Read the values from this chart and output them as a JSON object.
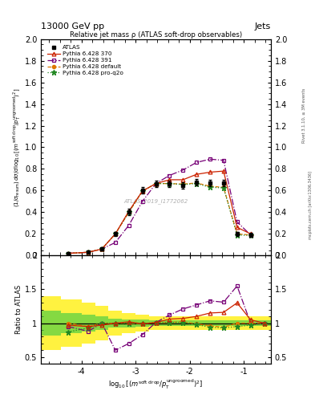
{
  "title_top": "13000 GeV pp",
  "title_right": "Jets",
  "main_title": "Relative jet mass ρ (ATLAS soft-drop observables)",
  "watermark": "ATLAS_2019_I1772062",
  "right_label": "Rivet 3.1.10, ≥ 3M events",
  "arxiv_label": "mcplots.cern.ch [arXiv:1306.3436]",
  "ylabel_ratio": "Ratio to ATLAS",
  "xlim": [
    -4.75,
    -0.5
  ],
  "ylim_main": [
    0.0,
    2.0
  ],
  "ylim_ratio": [
    0.4,
    2.0
  ],
  "x_ticks": [
    -4,
    -3,
    -2,
    -1
  ],
  "x_values": [
    -4.25,
    -3.875,
    -3.625,
    -3.375,
    -3.125,
    -2.875,
    -2.625,
    -2.375,
    -2.125,
    -1.875,
    -1.625,
    -1.375,
    -1.125,
    -0.875,
    -0.625
  ],
  "atlas_y": [
    0.02,
    0.03,
    0.06,
    0.2,
    0.4,
    0.6,
    0.66,
    0.66,
    0.65,
    0.68,
    0.67,
    0.67,
    0.2,
    0.19,
    0.0
  ],
  "atlas_yerr": [
    0.005,
    0.005,
    0.01,
    0.02,
    0.03,
    0.03,
    0.03,
    0.03,
    0.03,
    0.03,
    0.03,
    0.03,
    0.02,
    0.02,
    0.005
  ],
  "p370_y": [
    0.02,
    0.03,
    0.06,
    0.2,
    0.41,
    0.595,
    0.665,
    0.7,
    0.7,
    0.75,
    0.77,
    0.78,
    0.26,
    0.2,
    0.0
  ],
  "p391_y": [
    0.02,
    0.03,
    0.06,
    0.12,
    0.28,
    0.5,
    0.665,
    0.74,
    0.79,
    0.86,
    0.89,
    0.88,
    0.31,
    0.19,
    0.0
  ],
  "pdef_y": [
    0.02,
    0.03,
    0.06,
    0.2,
    0.4,
    0.595,
    0.665,
    0.665,
    0.66,
    0.67,
    0.64,
    0.63,
    0.2,
    0.19,
    0.0
  ],
  "pq2o_y": [
    0.02,
    0.03,
    0.06,
    0.2,
    0.4,
    0.595,
    0.665,
    0.665,
    0.655,
    0.665,
    0.63,
    0.625,
    0.19,
    0.185,
    0.0
  ],
  "atlas_color": "#000000",
  "p370_color": "#cc2200",
  "p391_color": "#770077",
  "pdef_color": "#dd7700",
  "pq2o_color": "#228822",
  "ratio_x": [
    -4.25,
    -3.875,
    -3.625,
    -3.375,
    -3.125,
    -2.875,
    -2.625,
    -2.375,
    -2.125,
    -1.875,
    -1.625,
    -1.375,
    -1.125,
    -0.875,
    -0.625
  ],
  "ratio_p370": [
    0.97,
    0.95,
    0.97,
    1.0,
    1.02,
    0.99,
    1.01,
    1.06,
    1.07,
    1.1,
    1.15,
    1.16,
    1.3,
    1.05,
    1.0
  ],
  "ratio_p391": [
    0.95,
    0.88,
    1.0,
    0.6,
    0.7,
    0.83,
    1.01,
    1.12,
    1.21,
    1.27,
    1.33,
    1.31,
    1.55,
    1.0,
    1.0
  ],
  "ratio_pdef": [
    1.0,
    0.95,
    1.0,
    1.0,
    1.0,
    0.99,
    1.01,
    1.01,
    1.02,
    0.99,
    0.96,
    0.94,
    1.0,
    1.0,
    1.0
  ],
  "ratio_pq2o": [
    0.87,
    0.93,
    1.0,
    1.0,
    1.0,
    0.99,
    1.01,
    1.01,
    1.01,
    0.98,
    0.94,
    0.93,
    0.95,
    0.97,
    1.0
  ],
  "band_x_edges": [
    -4.75,
    -4.375,
    -4.0,
    -3.75,
    -3.5,
    -3.25,
    -3.0,
    -2.75,
    -2.5,
    -2.25,
    -2.0,
    -1.75,
    -1.5,
    -1.25,
    -1.0,
    -0.75,
    -0.5
  ],
  "yellow_lo": [
    0.6,
    0.65,
    0.7,
    0.75,
    0.82,
    0.85,
    0.88,
    0.9,
    0.9,
    0.9,
    0.9,
    0.9,
    0.9,
    0.9,
    0.9,
    0.9
  ],
  "yellow_hi": [
    1.4,
    1.35,
    1.3,
    1.25,
    1.18,
    1.15,
    1.12,
    1.1,
    1.1,
    1.1,
    1.1,
    1.1,
    1.1,
    1.1,
    1.1,
    1.1
  ],
  "green_lo": [
    0.82,
    0.85,
    0.88,
    0.9,
    0.93,
    0.94,
    0.95,
    0.96,
    0.96,
    0.96,
    0.96,
    0.96,
    0.96,
    0.96,
    0.96,
    0.96
  ],
  "green_hi": [
    1.18,
    1.15,
    1.12,
    1.1,
    1.07,
    1.06,
    1.05,
    1.04,
    1.04,
    1.04,
    1.04,
    1.04,
    1.04,
    1.04,
    1.04,
    1.04
  ]
}
